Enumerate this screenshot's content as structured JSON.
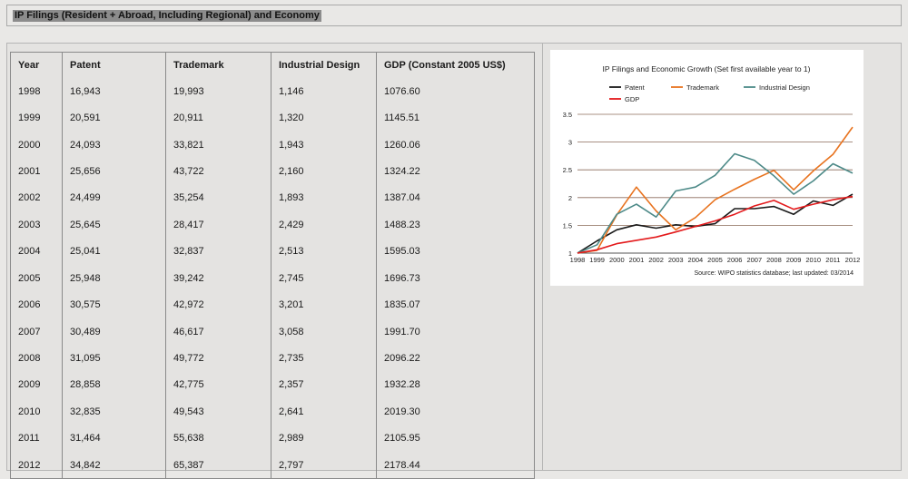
{
  "header": {
    "title": "IP Filings (Resident + Abroad, Including Regional) and Economy"
  },
  "table": {
    "columns": [
      "Year",
      "Patent",
      "Trademark",
      "Industrial Design",
      "GDP (Constant 2005 US$)"
    ],
    "rows": [
      [
        "1998",
        "16,943",
        "19,993",
        "1,146",
        "1076.60"
      ],
      [
        "1999",
        "20,591",
        "20,911",
        "1,320",
        "1145.51"
      ],
      [
        "2000",
        "24,093",
        "33,821",
        "1,943",
        "1260.06"
      ],
      [
        "2001",
        "25,656",
        "43,722",
        "2,160",
        "1324.22"
      ],
      [
        "2002",
        "24,499",
        "35,254",
        "1,893",
        "1387.04"
      ],
      [
        "2003",
        "25,645",
        "28,417",
        "2,429",
        "1488.23"
      ],
      [
        "2004",
        "25,041",
        "32,837",
        "2,513",
        "1595.03"
      ],
      [
        "2005",
        "25,948",
        "39,242",
        "2,745",
        "1696.73"
      ],
      [
        "2006",
        "30,575",
        "42,972",
        "3,201",
        "1835.07"
      ],
      [
        "2007",
        "30,489",
        "46,617",
        "3,058",
        "1991.70"
      ],
      [
        "2008",
        "31,095",
        "49,772",
        "2,735",
        "2096.22"
      ],
      [
        "2009",
        "28,858",
        "42,775",
        "2,357",
        "1932.28"
      ],
      [
        "2010",
        "32,835",
        "49,543",
        "2,641",
        "2019.30"
      ],
      [
        "2011",
        "31,464",
        "55,638",
        "2,989",
        "2105.95"
      ],
      [
        "2012",
        "34,842",
        "65,387",
        "2,797",
        "2178.44"
      ]
    ]
  },
  "chart_data": {
    "type": "line",
    "title": "IP Filings and Economic Growth (Set first available year to 1)",
    "source": "Source: WIPO statistics database; last updated: 03/2014",
    "xlabel": "",
    "ylabel": "",
    "x": [
      "1998",
      "1999",
      "2000",
      "2001",
      "2002",
      "2003",
      "2004",
      "2005",
      "2006",
      "2007",
      "2008",
      "2009",
      "2010",
      "2011",
      "2012"
    ],
    "ylim": [
      1,
      3.5
    ],
    "yticks": [
      1,
      1.5,
      2,
      2.5,
      3,
      3.5
    ],
    "ytick_labels": [
      "1",
      "1.5",
      "2",
      "2.5",
      "3",
      "3.5"
    ],
    "grid": "horizontal",
    "legend": "top",
    "series": [
      {
        "name": "Patent",
        "color": "#1a1a1a",
        "values": [
          1,
          1.22,
          1.42,
          1.51,
          1.45,
          1.51,
          1.48,
          1.53,
          1.8,
          1.8,
          1.84,
          1.7,
          1.94,
          1.86,
          2.06
        ]
      },
      {
        "name": "Trademark",
        "color": "#e8731f",
        "values": [
          1,
          1.05,
          1.69,
          2.19,
          1.76,
          1.42,
          1.64,
          1.96,
          2.15,
          2.33,
          2.49,
          2.14,
          2.48,
          2.78,
          3.27
        ]
      },
      {
        "name": "Industrial Design",
        "color": "#4d8a88",
        "values": [
          1,
          1.15,
          1.7,
          1.88,
          1.65,
          2.12,
          2.19,
          2.4,
          2.79,
          2.67,
          2.39,
          2.06,
          2.3,
          2.61,
          2.44
        ]
      },
      {
        "name": "GDP",
        "color": "#e31a1c",
        "values": [
          1,
          1.06,
          1.17,
          1.23,
          1.29,
          1.38,
          1.48,
          1.58,
          1.7,
          1.85,
          1.95,
          1.79,
          1.88,
          1.96,
          2.02
        ]
      }
    ]
  }
}
